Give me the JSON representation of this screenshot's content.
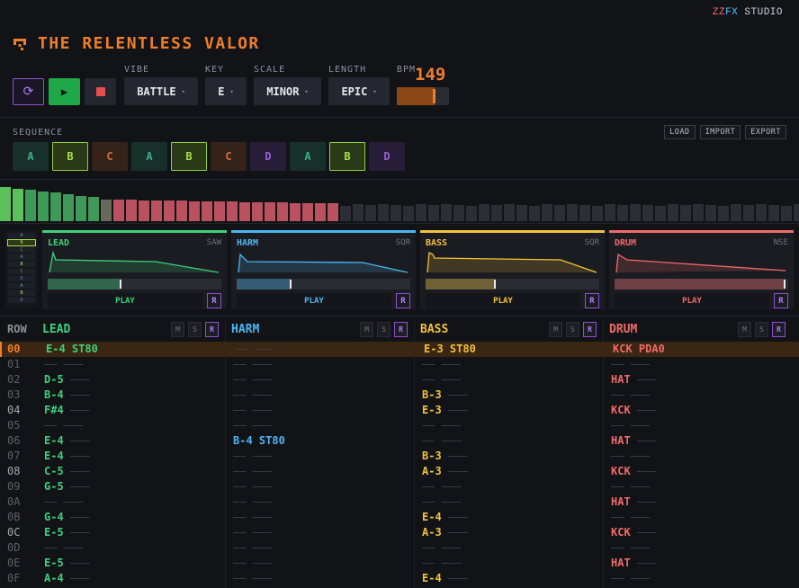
{
  "brand": {
    "zz": "ZZ",
    "fx": "FX",
    "studio": "STUDIO"
  },
  "title": "THE RELENTLESS VALOR",
  "transport": {
    "loop_icon": "⟳",
    "play_icon": "▶"
  },
  "controls": {
    "vibe": {
      "label": "VIBE",
      "value": "BATTLE"
    },
    "key": {
      "label": "KEY",
      "value": "E"
    },
    "scale": {
      "label": "SCALE",
      "value": "MINOR"
    },
    "length": {
      "label": "LENGTH",
      "value": "EPIC"
    },
    "bpm": {
      "label": "BPM",
      "value": "149",
      "level": 0.72
    },
    "caret": "▾"
  },
  "sequence": {
    "label": "SEQUENCE",
    "actions": [
      "LOAD",
      "IMPORT",
      "EXPORT"
    ],
    "cells": [
      "A",
      "B",
      "C",
      "A",
      "B",
      "C",
      "D",
      "A",
      "B",
      "D"
    ]
  },
  "panels": [
    {
      "name": "LEAD",
      "type": "SAW",
      "play": "PLAY",
      "r": "R",
      "color": "#3ed07a",
      "level": 0.42
    },
    {
      "name": "HARM",
      "type": "SQR",
      "play": "PLAY",
      "r": "R",
      "color": "#4bb6f0",
      "level": 0.31
    },
    {
      "name": "BASS",
      "type": "SQR",
      "play": "PLAY",
      "r": "R",
      "color": "#f2c23a",
      "level": 0.4
    },
    {
      "name": "DRUM",
      "type": "NSE",
      "play": "PLAY",
      "r": "R",
      "color": "#f06a6a",
      "level": 0.98
    }
  ],
  "tracker": {
    "row_label": "ROW",
    "msr": [
      "M",
      "S",
      "R"
    ],
    "channels": [
      {
        "name": "LEAD",
        "color": "#3ed07a"
      },
      {
        "name": "HARM",
        "color": "#4bb6f0"
      },
      {
        "name": "BASS",
        "color": "#f2c23a"
      },
      {
        "name": "DRUM",
        "color": "#f06a6a"
      }
    ],
    "rows": [
      {
        "n": "00",
        "c": [
          [
            "E-4",
            "ST80"
          ],
          null,
          [
            "E-3",
            "ST80"
          ],
          [
            "KCK",
            "PDA0"
          ]
        ]
      },
      {
        "n": "01",
        "c": [
          null,
          null,
          null,
          null
        ]
      },
      {
        "n": "02",
        "c": [
          [
            "D-5",
            null
          ],
          null,
          null,
          [
            "HAT",
            null
          ]
        ]
      },
      {
        "n": "03",
        "c": [
          [
            "B-4",
            null
          ],
          null,
          [
            "B-3",
            null
          ],
          null
        ]
      },
      {
        "n": "04",
        "c": [
          [
            "F#4",
            null
          ],
          null,
          [
            "E-3",
            null
          ],
          [
            "KCK",
            null
          ]
        ]
      },
      {
        "n": "05",
        "c": [
          null,
          null,
          null,
          null
        ]
      },
      {
        "n": "06",
        "c": [
          [
            "E-4",
            null
          ],
          [
            "B-4",
            "ST80"
          ],
          null,
          [
            "HAT",
            null
          ]
        ]
      },
      {
        "n": "07",
        "c": [
          [
            "E-4",
            null
          ],
          null,
          [
            "B-3",
            null
          ],
          null
        ]
      },
      {
        "n": "08",
        "c": [
          [
            "C-5",
            null
          ],
          null,
          [
            "A-3",
            null
          ],
          [
            "KCK",
            null
          ]
        ]
      },
      {
        "n": "09",
        "c": [
          [
            "G-5",
            null
          ],
          null,
          null,
          null
        ]
      },
      {
        "n": "0A",
        "c": [
          null,
          null,
          null,
          [
            "HAT",
            null
          ]
        ]
      },
      {
        "n": "0B",
        "c": [
          [
            "G-4",
            null
          ],
          null,
          [
            "E-4",
            null
          ],
          null
        ]
      },
      {
        "n": "0C",
        "c": [
          [
            "E-5",
            null
          ],
          null,
          [
            "A-3",
            null
          ],
          [
            "KCK",
            null
          ]
        ]
      },
      {
        "n": "0D",
        "c": [
          null,
          null,
          null,
          null
        ]
      },
      {
        "n": "0E",
        "c": [
          [
            "E-5",
            null
          ],
          null,
          null,
          [
            "HAT",
            null
          ]
        ]
      },
      {
        "n": "0F",
        "c": [
          [
            "A-4",
            null
          ],
          null,
          [
            "E-4",
            null
          ],
          null
        ]
      }
    ]
  },
  "colors": {
    "accent": "#ef7e2a",
    "seq_A": "#3fae86",
    "seq_B": "#a8e04e",
    "seq_C": "#d1703a",
    "seq_D": "#9860d8"
  }
}
